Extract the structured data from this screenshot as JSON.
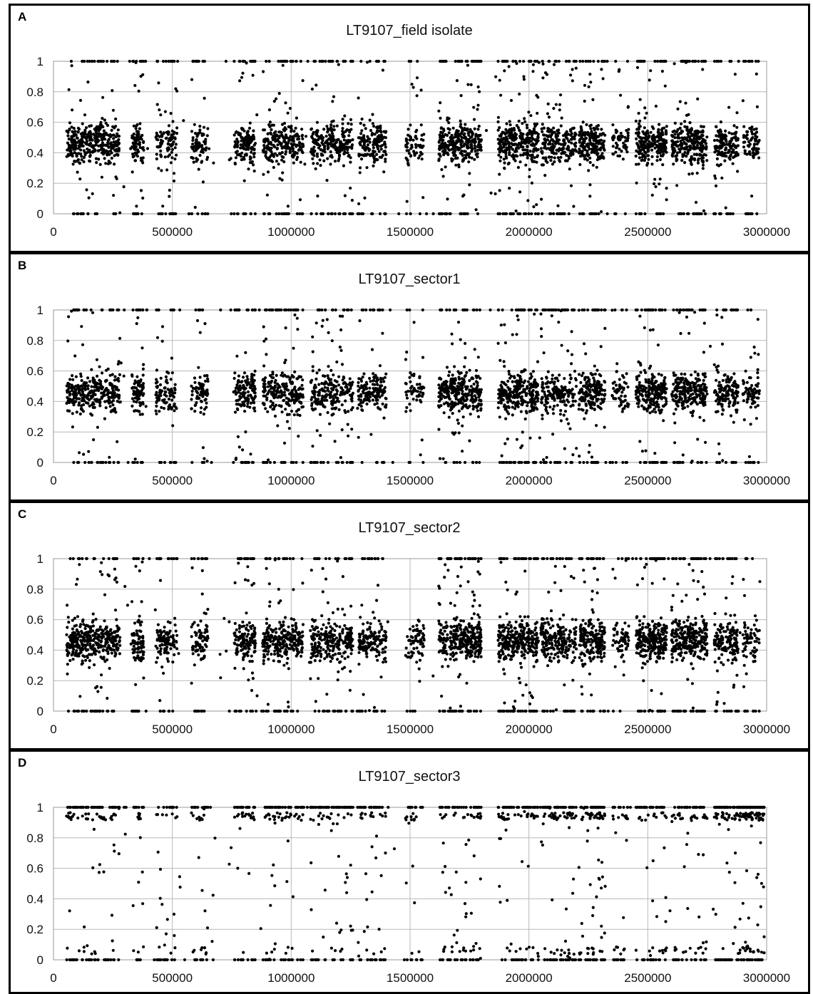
{
  "chart_data": [
    {
      "type": "scatter",
      "panel_label": "A",
      "title": "LT9107_field isolate",
      "xlim": [
        0,
        3000000
      ],
      "ylim": [
        0,
        1
      ],
      "x_ticks": [
        0,
        500000,
        1000000,
        1500000,
        2000000,
        2500000,
        3000000
      ],
      "y_ticks": [
        0,
        0.2,
        0.4,
        0.6,
        0.8,
        1
      ],
      "grid": true,
      "point_color": "#000000",
      "profile": "heterozygous",
      "clusters": [
        [
          55000,
          280000,
          360
        ],
        [
          330000,
          380000,
          90
        ],
        [
          430000,
          520000,
          110
        ],
        [
          580000,
          650000,
          90
        ],
        [
          760000,
          850000,
          150
        ],
        [
          880000,
          1050000,
          260
        ],
        [
          1080000,
          1260000,
          260
        ],
        [
          1280000,
          1400000,
          160
        ],
        [
          1480000,
          1560000,
          70
        ],
        [
          1620000,
          1800000,
          340
        ],
        [
          1870000,
          2040000,
          320
        ],
        [
          2050000,
          2200000,
          220
        ],
        [
          2210000,
          2320000,
          200
        ],
        [
          2350000,
          2420000,
          60
        ],
        [
          2450000,
          2580000,
          260
        ],
        [
          2600000,
          2750000,
          280
        ],
        [
          2780000,
          2880000,
          160
        ],
        [
          2900000,
          2970000,
          80
        ]
      ],
      "point_count_estimate": 3800
    },
    {
      "type": "scatter",
      "panel_label": "B",
      "title": "LT9107_sector1",
      "xlim": [
        0,
        3000000
      ],
      "ylim": [
        0,
        1
      ],
      "x_ticks": [
        0,
        500000,
        1000000,
        1500000,
        2000000,
        2500000,
        3000000
      ],
      "y_ticks": [
        0,
        0.2,
        0.4,
        0.6,
        0.8,
        1
      ],
      "grid": true,
      "point_color": "#000000",
      "profile": "heterozygous",
      "clusters": [
        [
          55000,
          280000,
          330
        ],
        [
          330000,
          380000,
          90
        ],
        [
          430000,
          520000,
          100
        ],
        [
          580000,
          650000,
          80
        ],
        [
          760000,
          850000,
          140
        ],
        [
          880000,
          1050000,
          240
        ],
        [
          1080000,
          1260000,
          240
        ],
        [
          1280000,
          1400000,
          150
        ],
        [
          1480000,
          1560000,
          60
        ],
        [
          1620000,
          1800000,
          320
        ],
        [
          1870000,
          2040000,
          300
        ],
        [
          2050000,
          2200000,
          210
        ],
        [
          2210000,
          2320000,
          190
        ],
        [
          2350000,
          2420000,
          60
        ],
        [
          2450000,
          2580000,
          250
        ],
        [
          2600000,
          2750000,
          260
        ],
        [
          2780000,
          2880000,
          150
        ],
        [
          2900000,
          2970000,
          80
        ]
      ],
      "point_count_estimate": 3600
    },
    {
      "type": "scatter",
      "panel_label": "C",
      "title": "LT9107_sector2",
      "xlim": [
        0,
        3000000
      ],
      "ylim": [
        0,
        1
      ],
      "x_ticks": [
        0,
        500000,
        1000000,
        1500000,
        2000000,
        2500000,
        3000000
      ],
      "y_ticks": [
        0,
        0.2,
        0.4,
        0.6,
        0.8,
        1
      ],
      "grid": true,
      "point_color": "#000000",
      "profile": "heterozygous",
      "clusters": [
        [
          55000,
          280000,
          380
        ],
        [
          330000,
          380000,
          90
        ],
        [
          430000,
          520000,
          110
        ],
        [
          580000,
          650000,
          90
        ],
        [
          760000,
          850000,
          150
        ],
        [
          880000,
          1050000,
          270
        ],
        [
          1080000,
          1260000,
          270
        ],
        [
          1280000,
          1400000,
          160
        ],
        [
          1480000,
          1560000,
          70
        ],
        [
          1620000,
          1800000,
          360
        ],
        [
          1870000,
          2040000,
          330
        ],
        [
          2050000,
          2200000,
          230
        ],
        [
          2210000,
          2320000,
          210
        ],
        [
          2350000,
          2420000,
          60
        ],
        [
          2450000,
          2580000,
          270
        ],
        [
          2600000,
          2750000,
          290
        ],
        [
          2780000,
          2880000,
          170
        ],
        [
          2900000,
          2970000,
          80
        ]
      ],
      "point_count_estimate": 3900
    },
    {
      "type": "scatter",
      "panel_label": "D",
      "title": "LT9107_sector3",
      "xlim": [
        0,
        3000000
      ],
      "ylim": [
        0,
        1
      ],
      "x_ticks": [
        0,
        500000,
        1000000,
        1500000,
        2000000,
        2500000,
        3000000
      ],
      "y_ticks": [
        0,
        0.2,
        0.4,
        0.6,
        0.8,
        1
      ],
      "grid": true,
      "point_color": "#000000",
      "profile": "homozygous",
      "clusters": [
        [
          55000,
          280000,
          120
        ],
        [
          330000,
          380000,
          30
        ],
        [
          430000,
          520000,
          40
        ],
        [
          580000,
          650000,
          40
        ],
        [
          760000,
          850000,
          50
        ],
        [
          880000,
          1050000,
          90
        ],
        [
          1080000,
          1260000,
          90
        ],
        [
          1280000,
          1400000,
          60
        ],
        [
          1480000,
          1560000,
          30
        ],
        [
          1620000,
          1800000,
          90
        ],
        [
          1870000,
          2040000,
          90
        ],
        [
          2050000,
          2200000,
          110
        ],
        [
          2210000,
          2320000,
          110
        ],
        [
          2350000,
          2420000,
          40
        ],
        [
          2450000,
          2580000,
          70
        ],
        [
          2600000,
          2750000,
          80
        ],
        [
          2780000,
          2880000,
          90
        ],
        [
          2880000,
          2990000,
          170
        ]
      ],
      "point_count_estimate": 1800
    }
  ]
}
